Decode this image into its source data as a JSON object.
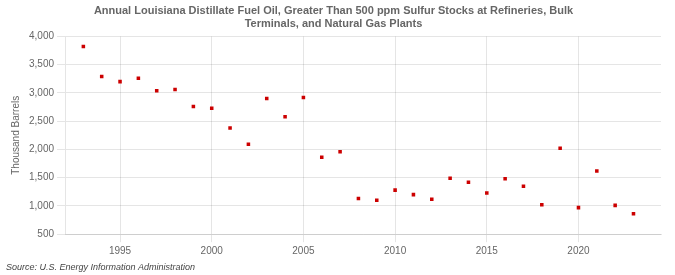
{
  "chart_data": {
    "type": "scatter",
    "title": "Annual Louisiana Distillate Fuel Oil, Greater Than 500 ppm Sulfur Stocks at Refineries, Bulk\nTerminals, and Natural Gas Plants",
    "ylabel": "Thousand Barrels",
    "source": "Source: U.S. Energy Information Administration",
    "x": [
      1993,
      1994,
      1995,
      1996,
      1997,
      1998,
      1999,
      2000,
      2001,
      2002,
      2003,
      2004,
      2005,
      2006,
      2007,
      2008,
      2009,
      2010,
      2011,
      2012,
      2013,
      2014,
      2015,
      2016,
      2017,
      2018,
      2019,
      2020,
      2021,
      2022,
      2023
    ],
    "values": [
      3820,
      3290,
      3200,
      3260,
      3040,
      3060,
      2760,
      2730,
      2380,
      2090,
      2900,
      2580,
      2920,
      1860,
      1960,
      1130,
      1100,
      1280,
      1200,
      1120,
      1490,
      1420,
      1230,
      1480,
      1350,
      1020,
      2020,
      970,
      1620,
      1010,
      860
    ],
    "color": "#cc0000",
    "marker": "square",
    "xlim": [
      1992.0,
      2024.5
    ],
    "xticks": [
      1995,
      2000,
      2005,
      2010,
      2015,
      2020
    ],
    "ylim": [
      500,
      4000
    ],
    "yticks": [
      500,
      {
        "value": 1000,
        "label": "1,000"
      },
      {
        "value": 1500,
        "label": "1,500"
      },
      {
        "value": 2000,
        "label": "2,000"
      },
      {
        "value": 2500,
        "label": "2,500"
      },
      {
        "value": 3000,
        "label": "3,000"
      },
      {
        "value": 3500,
        "label": "3,500"
      },
      {
        "value": 4000,
        "label": "4,000"
      }
    ],
    "grid": true
  }
}
